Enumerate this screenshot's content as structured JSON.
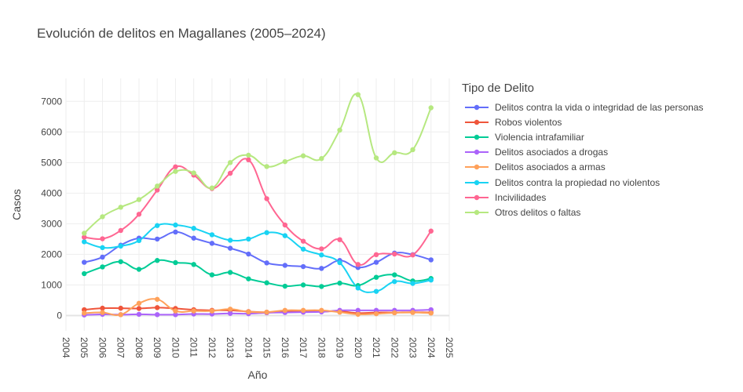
{
  "chart_data": {
    "type": "line",
    "title": "Evolución de delitos en Magallanes (2005–2024)",
    "xlabel": "Año",
    "ylabel": "Casos",
    "xlim": [
      2004,
      2025
    ],
    "ylim": [
      -500,
      7750
    ],
    "x_ticks": [
      "2004",
      "2005",
      "2006",
      "2007",
      "2008",
      "2009",
      "2010",
      "2011",
      "2012",
      "2013",
      "2014",
      "2015",
      "2016",
      "2017",
      "2018",
      "2019",
      "2020",
      "2021",
      "2022",
      "2023",
      "2024",
      "2025"
    ],
    "y_ticks": [
      0,
      1000,
      2000,
      3000,
      4000,
      5000,
      6000,
      7000
    ],
    "grid": true,
    "legend_title": "Tipo de Delito",
    "legend_position": "right",
    "x": [
      2005,
      2006,
      2007,
      2008,
      2009,
      2010,
      2011,
      2012,
      2013,
      2014,
      2015,
      2016,
      2017,
      2018,
      2019,
      2020,
      2021,
      2022,
      2023,
      2024
    ],
    "series": [
      {
        "name": "Delitos contra la vida o integridad de las personas",
        "color": "#636efa",
        "values": [
          1740,
          1910,
          2300,
          2530,
          2500,
          2730,
          2530,
          2360,
          2200,
          2010,
          1720,
          1640,
          1600,
          1540,
          1800,
          1570,
          1740,
          2040,
          1990,
          1820
        ]
      },
      {
        "name": "Robos violentos",
        "color": "#ef553b",
        "values": [
          190,
          240,
          240,
          230,
          260,
          230,
          190,
          170,
          170,
          130,
          110,
          130,
          150,
          130,
          140,
          80,
          100,
          100,
          110,
          100
        ]
      },
      {
        "name": "Violencia intrafamiliar",
        "color": "#00cc96",
        "values": [
          1370,
          1590,
          1760,
          1510,
          1800,
          1730,
          1670,
          1330,
          1410,
          1200,
          1070,
          960,
          1000,
          950,
          1060,
          980,
          1250,
          1330,
          1130,
          1210
        ]
      },
      {
        "name": "Delitos asociados a drogas",
        "color": "#ab63fa",
        "values": [
          20,
          40,
          30,
          40,
          30,
          30,
          50,
          50,
          70,
          60,
          90,
          100,
          110,
          120,
          170,
          170,
          170,
          170,
          170,
          190
        ]
      },
      {
        "name": "Delitos asociados a armas",
        "color": "#ffa15a",
        "values": [
          80,
          100,
          30,
          400,
          530,
          150,
          150,
          150,
          210,
          120,
          110,
          170,
          170,
          170,
          110,
          40,
          60,
          90,
          100,
          80
        ]
      },
      {
        "name": "Delitos contra la propiedad no violentos",
        "color": "#19d3f3",
        "values": [
          2410,
          2220,
          2270,
          2450,
          2940,
          2960,
          2850,
          2640,
          2460,
          2500,
          2710,
          2610,
          2170,
          1980,
          1730,
          900,
          790,
          1110,
          1050,
          1160
        ]
      },
      {
        "name": "Incivilidades",
        "color": "#ff6692",
        "values": [
          2560,
          2510,
          2780,
          3310,
          4100,
          4860,
          4590,
          4150,
          4650,
          5090,
          3820,
          2960,
          2430,
          2180,
          2480,
          1670,
          1990,
          2010,
          1980,
          2760
        ]
      },
      {
        "name": "Otros delitos o faltas",
        "color": "#b6e880",
        "values": [
          2690,
          3230,
          3540,
          3790,
          4230,
          4710,
          4660,
          4170,
          5000,
          5240,
          4870,
          5030,
          5220,
          5130,
          6060,
          7220,
          5150,
          5320,
          5420,
          6790
        ]
      }
    ]
  }
}
